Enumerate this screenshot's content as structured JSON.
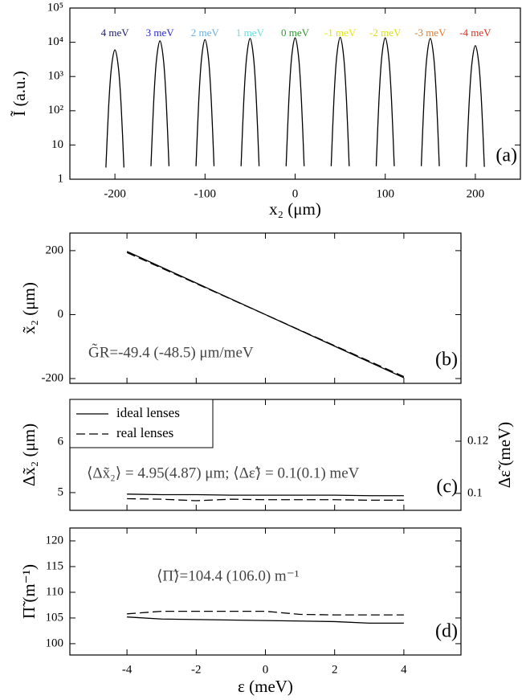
{
  "chart_data": [
    {
      "type": "line",
      "panel_label": "(a)",
      "ylabel": "Ĩ (a.u.)",
      "xlabel": "x₂ (μm)",
      "ylog": true,
      "smooth": true,
      "series_labels": true,
      "line_color": "#000000",
      "xlim": [
        -250,
        250
      ],
      "xticks": [
        -200,
        -100,
        0,
        100,
        200
      ],
      "ylim": [
        1,
        100000
      ],
      "yticks": [
        1,
        10,
        {
          "value": 100,
          "label": "10²"
        },
        {
          "value": 1000,
          "label": "10³"
        },
        {
          "value": 10000,
          "label": "10⁴"
        },
        {
          "value": 100000,
          "label": "10⁵"
        }
      ],
      "series": [
        {
          "name": "4 meV",
          "color": "#1a1a6e",
          "x": [
            -210,
            -207,
            -204,
            -200,
            -196,
            -193,
            -190
          ],
          "values": [
            2.2,
            126,
            1700,
            6000,
            1700,
            126,
            2.2
          ]
        },
        {
          "name": "3 meV",
          "color": "#2a2acc",
          "x": [
            -160,
            -157,
            -154,
            -150,
            -146,
            -143,
            -140
          ],
          "values": [
            2.4,
            177,
            2850,
            11000,
            2850,
            177,
            2.4
          ]
        },
        {
          "name": "2 meV",
          "color": "#6ab0e6",
          "x": [
            -110,
            -107,
            -104,
            -100,
            -96,
            -93,
            -90
          ],
          "values": [
            2.4,
            185,
            3080,
            12000,
            3080,
            185,
            2.4
          ]
        },
        {
          "name": "1 meV",
          "color": "#66dede",
          "x": [
            -60,
            -57,
            -54,
            -50,
            -46,
            -43,
            -40
          ],
          "values": [
            2.4,
            194,
            3290,
            13000,
            3290,
            194,
            2.4
          ]
        },
        {
          "name": "0 meV",
          "color": "#2a9a2a",
          "x": [
            -10,
            -7,
            -4,
            0,
            4,
            7,
            10
          ],
          "values": [
            2.4,
            198,
            3400,
            13500,
            3400,
            198,
            2.4
          ]
        },
        {
          "name": "-1 meV",
          "color": "#e6e600",
          "x": [
            40,
            43,
            46,
            50,
            54,
            57,
            60
          ],
          "values": [
            2.4,
            202,
            3510,
            14000,
            3510,
            202,
            2.4
          ]
        },
        {
          "name": "-2 meV",
          "color": "#dede00",
          "x": [
            90,
            93,
            96,
            100,
            104,
            107,
            110
          ],
          "values": [
            2.4,
            198,
            3400,
            13500,
            3400,
            198,
            2.4
          ]
        },
        {
          "name": "-3 meV",
          "color": "#e07a2a",
          "x": [
            140,
            143,
            146,
            150,
            154,
            157,
            160
          ],
          "values": [
            2.4,
            194,
            3290,
            13000,
            3290,
            194,
            2.4
          ]
        },
        {
          "name": "-4 meV",
          "color": "#e02a1a",
          "x": [
            190,
            193,
            196,
            200,
            204,
            207,
            210
          ],
          "values": [
            2.3,
            148,
            2170,
            8000,
            2170,
            148,
            2.3
          ]
        }
      ]
    },
    {
      "type": "line",
      "panel_label": "(b)",
      "ylabel": "x̃₂ (μm)",
      "annotations": [
        "G̃R=-49.4 (-48.5) μm/meV"
      ],
      "xlim": [
        -5.65,
        5.65
      ],
      "xticks": [
        -4,
        -2,
        0,
        2,
        4
      ],
      "xtick_labels": false,
      "ylim": [
        -215,
        255
      ],
      "yticks": [
        -200,
        0,
        200
      ],
      "x": [
        -4,
        -3,
        -2,
        -1,
        0,
        1,
        2,
        3,
        4
      ],
      "series": [
        {
          "color": "#000000",
          "values": [
            197.6,
            148.2,
            98.8,
            49.4,
            0,
            -49.4,
            -98.8,
            -148.2,
            -197.6
          ]
        },
        {
          "color": "#000000",
          "dash": true,
          "values": [
            194,
            145.5,
            97,
            48.5,
            0,
            -48.5,
            -97,
            -145.5,
            -194
          ]
        }
      ]
    },
    {
      "type": "line",
      "panel_label": "(c)",
      "ylabel": "Δx̃₂ (μm)",
      "y2label": "Δε̃ (meV)",
      "legend": "upper left",
      "annotations": [
        "⟨Δx̃₂⟩ = 4.95(4.87) μm;  ⟨Δε̃⟩ = 0.1(0.1) meV"
      ],
      "xlim": [
        -5.65,
        5.65
      ],
      "xticks": [
        -4,
        -2,
        0,
        2,
        4
      ],
      "xtick_labels": false,
      "ylim": [
        4.65,
        6.84
      ],
      "yticks": [
        5,
        6
      ],
      "y2lim": [
        0.0935,
        0.136
      ],
      "y2ticks": [
        0.1,
        0.12
      ],
      "x": [
        -4,
        -3,
        -2,
        -1,
        0,
        1,
        2,
        3,
        4
      ],
      "series": [
        {
          "name": "ideal lenses",
          "color": "#000000",
          "values": [
            4.97,
            4.96,
            4.96,
            4.95,
            4.95,
            4.95,
            4.95,
            4.94,
            4.94
          ]
        },
        {
          "name": "real lenses",
          "color": "#000000",
          "dash": true,
          "values": [
            4.88,
            4.87,
            4.84,
            4.87,
            4.86,
            4.86,
            4.86,
            4.85,
            4.85
          ]
        }
      ]
    },
    {
      "type": "line",
      "panel_label": "(d)",
      "ylabel": "Π̃ (m⁻¹)",
      "xlabel": "ε (meV)",
      "annotations": [
        "⟨Π̃⟩=104.4 (106.0) m⁻¹"
      ],
      "xlim": [
        -5.65,
        5.65
      ],
      "xticks": [
        -4,
        -2,
        0,
        2,
        4
      ],
      "ylim": [
        97.8,
        122.5
      ],
      "yticks": [
        100,
        105,
        110,
        115,
        120
      ],
      "x": [
        -4,
        -3,
        -2,
        -1,
        0,
        1,
        2,
        3,
        4
      ],
      "series": [
        {
          "color": "#000000",
          "values": [
            105.2,
            104.8,
            104.7,
            104.6,
            104.5,
            104.4,
            104.3,
            104.0,
            104.0
          ]
        },
        {
          "color": "#000000",
          "dash": true,
          "values": [
            105.8,
            106.3,
            106.3,
            106.3,
            106.3,
            105.7,
            105.6,
            105.6,
            105.6
          ]
        }
      ]
    }
  ]
}
